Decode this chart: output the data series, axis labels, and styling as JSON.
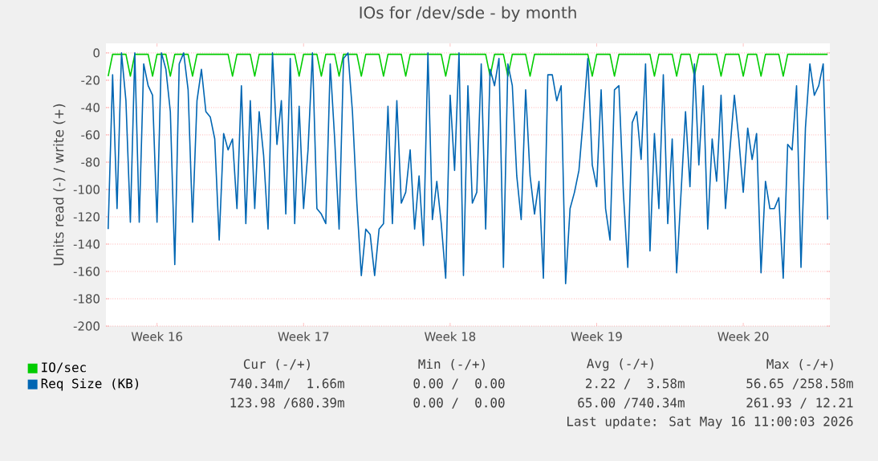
{
  "chart_data": {
    "type": "line",
    "title": "IOs for /dev/sde - by month",
    "ylabel": "Units read (-) / write (+)",
    "categories": [
      null,
      null,
      null,
      null,
      null,
      null,
      null,
      null,
      null,
      null,
      null,
      "Week 16",
      null,
      null,
      null,
      null,
      null,
      null,
      null,
      null,
      null,
      null,
      null,
      null,
      null,
      null,
      null,
      null,
      null,
      null,
      null,
      null,
      null,
      null,
      null,
      null,
      null,
      null,
      null,
      null,
      null,
      null,
      null,
      null,
      "Week 17",
      null,
      null,
      null,
      null,
      null,
      null,
      null,
      null,
      null,
      null,
      null,
      null,
      null,
      null,
      null,
      null,
      null,
      null,
      null,
      null,
      null,
      null,
      null,
      null,
      null,
      null,
      null,
      null,
      null,
      null,
      null,
      null,
      "Week 18",
      null,
      null,
      null,
      null,
      null,
      null,
      null,
      null,
      null,
      null,
      null,
      null,
      null,
      null,
      null,
      null,
      null,
      null,
      null,
      null,
      null,
      null,
      null,
      null,
      null,
      null,
      null,
      null,
      null,
      null,
      null,
      null,
      "Week 19",
      null,
      null,
      null,
      null,
      null,
      null,
      null,
      null,
      null,
      null,
      null,
      null,
      null,
      null,
      null,
      null,
      null,
      null,
      null,
      null,
      null,
      null,
      null,
      null,
      null,
      null,
      null,
      null,
      null,
      null,
      null,
      null,
      "Week 20",
      null,
      null,
      null,
      null,
      null,
      null,
      null,
      null,
      null,
      null,
      null,
      null,
      null,
      null,
      null,
      null,
      null,
      null,
      null
    ],
    "ylim": [
      -200,
      7
    ],
    "yticks": [
      -200,
      -180,
      -160,
      -140,
      -120,
      -100,
      -80,
      -60,
      -40,
      -20,
      0
    ],
    "grid": "y",
    "legend": "bottom",
    "series": [
      {
        "name": "IO/sec",
        "color": "#00cc00",
        "values": [
          -17,
          -1,
          -1,
          -1,
          -1,
          -17,
          -1,
          -1,
          -1,
          -1,
          -17,
          -1,
          -1,
          -1,
          -17,
          -1,
          -1,
          -1,
          -1,
          -17,
          -1,
          -1,
          -1,
          -1,
          -1,
          -1,
          -1,
          -1,
          -17,
          -1,
          -1,
          -1,
          -1,
          -17,
          -1,
          -1,
          -1,
          -1,
          -1,
          -1,
          -1,
          -1,
          -1,
          -17,
          -1,
          -1,
          -1,
          -1,
          -17,
          -1,
          -1,
          -1,
          -17,
          -1,
          -1,
          -1,
          -1,
          -17,
          -1,
          -1,
          -1,
          -1,
          -17,
          -1,
          -1,
          -1,
          -1,
          -17,
          -1,
          -1,
          -1,
          -1,
          -1,
          -1,
          -1,
          -1,
          -17,
          -1,
          -1,
          -1,
          -1,
          -1,
          -1,
          -1,
          -1,
          -1,
          -17,
          -1,
          -1,
          -1,
          -17,
          -1,
          -1,
          -1,
          -1,
          -17,
          -1,
          -1,
          -1,
          -1,
          -1,
          -1,
          -1,
          -1,
          -1,
          -1,
          -1,
          -1,
          -1,
          -17,
          -1,
          -1,
          -1,
          -1,
          -17,
          -1,
          -1,
          -1,
          -1,
          -1,
          -1,
          -1,
          -1,
          -17,
          -1,
          -1,
          -1,
          -1,
          -17,
          -1,
          -1,
          -1,
          -17,
          -1,
          -1,
          -1,
          -1,
          -1,
          -17,
          -1,
          -1,
          -1,
          -1,
          -17,
          -1,
          -1,
          -1,
          -17,
          -1,
          -1,
          -1,
          -1,
          -17,
          -1,
          -1,
          -1,
          -1,
          -1,
          -1,
          -1,
          -1,
          -1,
          -1
        ]
      },
      {
        "name": "Req Size (KB)",
        "color": "#0066b3",
        "values": [
          -129,
          -16,
          -114,
          0,
          -35,
          -124,
          0,
          -124,
          -8,
          -24,
          -31,
          -124,
          0,
          -12,
          -43,
          -155,
          -8,
          0,
          -27,
          -124,
          -35,
          -12,
          -43,
          -47,
          -63,
          -137,
          -59,
          -71,
          -63,
          -114,
          -24,
          -125,
          -35,
          -114,
          -43,
          -75,
          -129,
          0,
          -67,
          -35,
          -118,
          -4,
          -125,
          -39,
          -114,
          -71,
          0,
          -114,
          -118,
          -125,
          -8,
          -63,
          -129,
          -4,
          0,
          -43,
          -110,
          -163,
          -129,
          -133,
          -163,
          -129,
          -125,
          -39,
          -125,
          -35,
          -110,
          -102,
          -71,
          -129,
          -90,
          -141,
          0,
          -122,
          -94,
          -125,
          -165,
          -31,
          -86,
          0,
          -163,
          -24,
          -110,
          -102,
          -8,
          -129,
          -12,
          -24,
          -4,
          -157,
          -8,
          -24,
          -90,
          -122,
          -27,
          -90,
          -118,
          -94,
          -165,
          -16,
          -16,
          -35,
          -24,
          -169,
          -114,
          -102,
          -86,
          -47,
          -4,
          -82,
          -98,
          -27,
          -114,
          -137,
          -27,
          -24,
          -102,
          -157,
          -51,
          -43,
          -78,
          -8,
          -145,
          -59,
          -114,
          -16,
          -125,
          -63,
          -161,
          -102,
          -43,
          -98,
          -8,
          -82,
          -24,
          -129,
          -63,
          -94,
          -31,
          -114,
          -71,
          -31,
          -63,
          -102,
          -55,
          -78,
          -59,
          -161,
          -94,
          -114,
          -114,
          -106,
          -165,
          -67,
          -71,
          -24,
          -157,
          -55,
          -8,
          -31,
          -24,
          -8,
          -122
        ]
      }
    ],
    "annotations": [
      "Cur (-/+)",
      "Min (-/+)",
      "Avg (-/+)",
      "Max (-/+)",
      "740.34m/  1.66m",
      "0.00 /  0.00",
      "2.22 /  3.58m",
      "56.65 /258.58m",
      "123.98 /680.39m",
      "0.00 /  0.00",
      "65.00 /740.34m",
      "261.93 / 12.21",
      "Last update: Sat May 16 11:00:03 2026"
    ]
  }
}
